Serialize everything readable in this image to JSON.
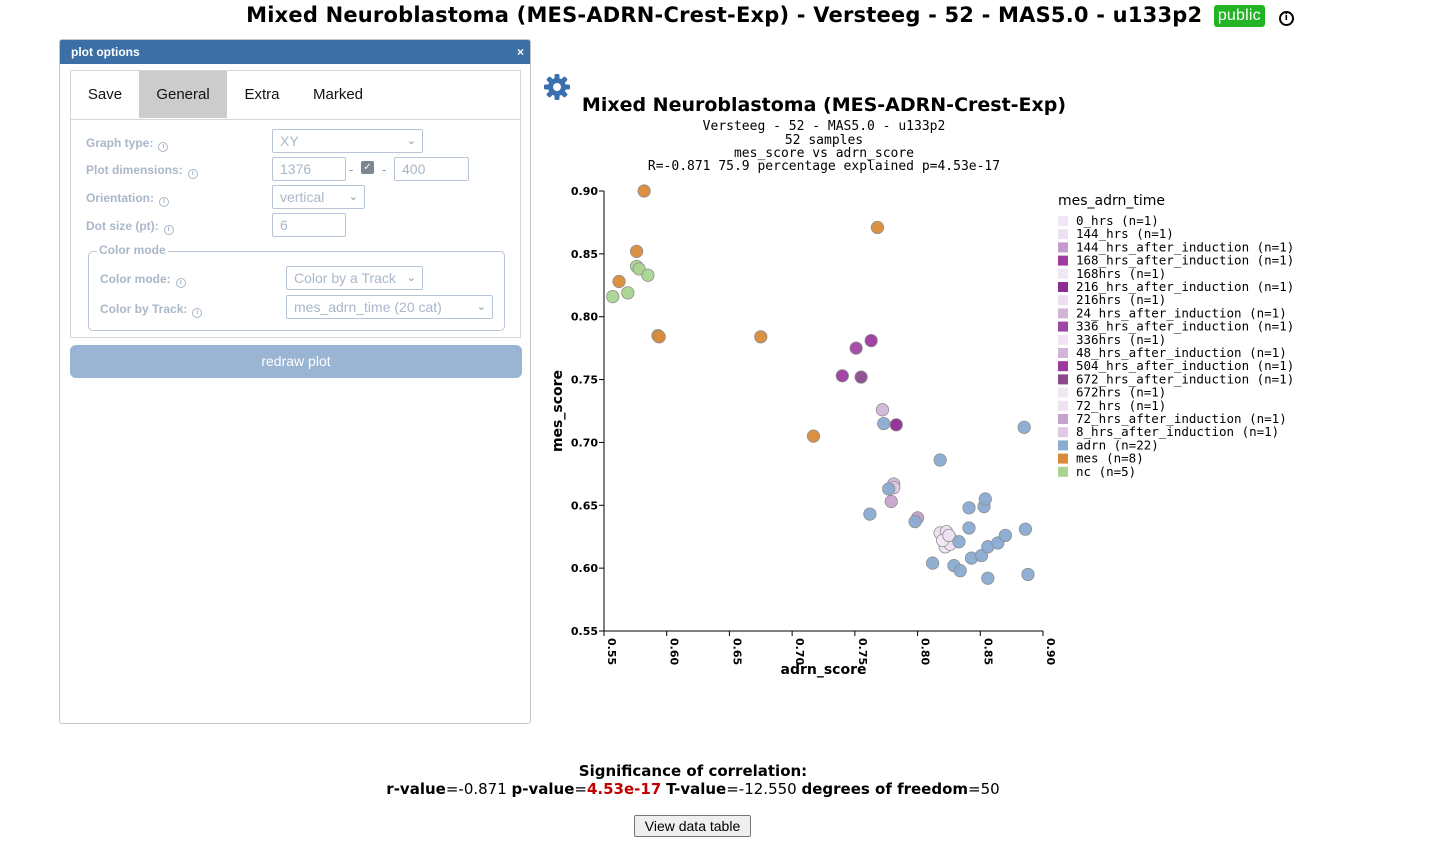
{
  "page": {
    "title": "Mixed Neuroblastoma (MES-ADRN-Crest-Exp) - Versteeg - 52 - MAS5.0 - u133p2",
    "badge": "public"
  },
  "panel": {
    "title": "plot options",
    "close": "×",
    "tabs": [
      "Save",
      "General",
      "Extra",
      "Marked"
    ],
    "active_tab": "General",
    "fields": {
      "graph_type_label": "Graph type:",
      "graph_type_value": "XY",
      "plot_dimensions_label": "Plot dimensions:",
      "width_value": "1376",
      "height_value": "400",
      "dash": "-",
      "orientation_label": "Orientation:",
      "orientation_value": "vertical",
      "dot_size_label": "Dot size (pt):",
      "dot_size_value": "6"
    },
    "color_mode": {
      "legend": "Color mode",
      "mode_label": "Color mode:",
      "mode_value": "Color by a Track",
      "track_label": "Color by Track:",
      "track_value": "mes_adrn_time (20 cat)"
    },
    "redraw_label": "redraw plot"
  },
  "chart_data": {
    "type": "scatter",
    "title": "Mixed Neuroblastoma (MES-ADRN-Crest-Exp)",
    "subtitle_lines": [
      "Versteeg - 52 - MAS5.0 - u133p2",
      "52 samples",
      "mes_score vs adrn_score",
      "R=-0.871 75.9 percentage explained p=4.53e-17"
    ],
    "xlabel": "adrn_score",
    "ylabel": "mes_score",
    "xlim": [
      0.55,
      0.9
    ],
    "ylim": [
      0.55,
      0.9
    ],
    "xticks": [
      "0.55",
      "0.60",
      "0.65",
      "0.70",
      "0.75",
      "0.80",
      "0.85",
      "0.90"
    ],
    "yticks": [
      "0.90",
      "0.85",
      "0.80",
      "0.75",
      "0.70",
      "0.65",
      "0.60",
      "0.55"
    ],
    "legend_title": "mes_adrn_time",
    "legend_position": "right",
    "series": [
      {
        "name": "0_hrs (n=1)",
        "color": "#f1e6f4",
        "points": [
          [
            0.822,
            0.617
          ]
        ]
      },
      {
        "name": "144_hrs (n=1)",
        "color": "#ede0f0",
        "points": [
          [
            0.818,
            0.628
          ]
        ]
      },
      {
        "name": "144_hrs_after_induction (n=1)",
        "color": "#c49ccb",
        "points": [
          [
            0.8,
            0.64
          ]
        ]
      },
      {
        "name": "168_hrs_after_induction (n=1)",
        "color": "#9d3da0",
        "points": [
          [
            0.74,
            0.753
          ]
        ]
      },
      {
        "name": "168hrs (n=1)",
        "color": "#f1e6f4",
        "points": [
          [
            0.826,
            0.624
          ]
        ]
      },
      {
        "name": "216_hrs_after_induction (n=1)",
        "color": "#8d2d94",
        "points": [
          [
            0.783,
            0.714
          ]
        ]
      },
      {
        "name": "216hrs (n=1)",
        "color": "#ece0f0",
        "points": [
          [
            0.823,
            0.629
          ]
        ]
      },
      {
        "name": "24_hrs_after_induction (n=1)",
        "color": "#d3b5d9",
        "points": [
          [
            0.772,
            0.726
          ]
        ]
      },
      {
        "name": "336_hrs_after_induction (n=1)",
        "color": "#a047a6",
        "points": [
          [
            0.751,
            0.775
          ]
        ]
      },
      {
        "name": "336hrs (n=1)",
        "color": "#efe3f2",
        "points": [
          [
            0.826,
            0.619
          ]
        ]
      },
      {
        "name": "48_hrs_after_induction (n=1)",
        "color": "#d3b5d9",
        "points": [
          [
            0.781,
            0.667
          ]
        ]
      },
      {
        "name": "504_hrs_after_induction (n=1)",
        "color": "#9a3a9e",
        "points": [
          [
            0.763,
            0.781
          ]
        ]
      },
      {
        "name": "672_hrs_after_induction (n=1)",
        "color": "#8c4a8c",
        "points": [
          [
            0.755,
            0.752
          ]
        ]
      },
      {
        "name": "672hrs (n=1)",
        "color": "#f2e8f4",
        "points": [
          [
            0.82,
            0.622
          ]
        ]
      },
      {
        "name": "72_hrs (n=1)",
        "color": "#efe3f2",
        "points": [
          [
            0.825,
            0.626
          ]
        ]
      },
      {
        "name": "72_hrs_after_induction (n=1)",
        "color": "#c7a4ce",
        "points": [
          [
            0.779,
            0.653
          ]
        ]
      },
      {
        "name": "8_hrs_after_induction (n=1)",
        "color": "#e0c9e4",
        "points": [
          [
            0.781,
            0.664
          ]
        ]
      },
      {
        "name": "adrn (n=22)",
        "color": "#8aabd2",
        "points": [
          [
            0.773,
            0.715
          ],
          [
            0.777,
            0.663
          ],
          [
            0.762,
            0.643
          ],
          [
            0.798,
            0.637
          ],
          [
            0.818,
            0.686
          ],
          [
            0.841,
            0.648
          ],
          [
            0.841,
            0.632
          ],
          [
            0.833,
            0.621
          ],
          [
            0.812,
            0.604
          ],
          [
            0.829,
            0.602
          ],
          [
            0.834,
            0.598
          ],
          [
            0.843,
            0.608
          ],
          [
            0.851,
            0.61
          ],
          [
            0.856,
            0.617
          ],
          [
            0.864,
            0.62
          ],
          [
            0.87,
            0.626
          ],
          [
            0.853,
            0.649
          ],
          [
            0.854,
            0.655
          ],
          [
            0.856,
            0.592
          ],
          [
            0.885,
            0.712
          ],
          [
            0.886,
            0.631
          ],
          [
            0.888,
            0.595
          ]
        ]
      },
      {
        "name": "mes (n=8)",
        "color": "#d98a3a",
        "points": [
          [
            0.582,
            0.9
          ],
          [
            0.768,
            0.871
          ],
          [
            0.576,
            0.852
          ],
          [
            0.562,
            0.828
          ],
          [
            0.593,
            0.785
          ],
          [
            0.594,
            0.784
          ],
          [
            0.675,
            0.784
          ],
          [
            0.717,
            0.705
          ]
        ]
      },
      {
        "name": "nc (n=5)",
        "color": "#a9d590",
        "points": [
          [
            0.557,
            0.816
          ],
          [
            0.569,
            0.819
          ],
          [
            0.576,
            0.84
          ],
          [
            0.578,
            0.838
          ],
          [
            0.585,
            0.833
          ]
        ]
      }
    ]
  },
  "significance": {
    "heading": "Significance of correlation:",
    "r_label": "r-value",
    "r_value": "-0.871",
    "p_label": "p-value",
    "p_value": "4.53e-17",
    "t_label": "T-value",
    "t_value": "-12.550",
    "df_label": "degrees of freedom",
    "df_value": "50",
    "eq": "="
  },
  "view_table_label": "View data table"
}
